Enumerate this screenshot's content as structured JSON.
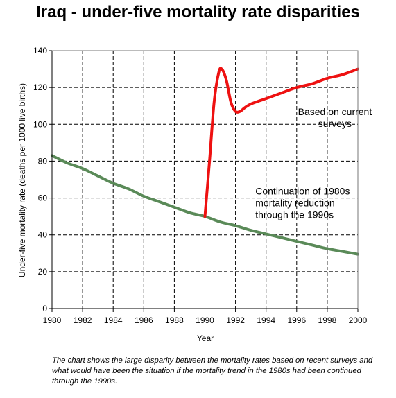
{
  "title": "Iraq - under-five mortality rate disparities",
  "caption": "The chart shows the large disparity between the mortality rates based on recent surveys and what would have been the situation if the mortality trend in the 1980s had been continued through the 1990s.",
  "chart_data": {
    "type": "line",
    "xlabel": "Year",
    "ylabel": "Under-five mortality rate (deaths per 1000 live births)",
    "xlim": [
      1980,
      2000
    ],
    "ylim": [
      0,
      140
    ],
    "xticks": [
      1980,
      1982,
      1984,
      1986,
      1988,
      1990,
      1992,
      1994,
      1996,
      1998,
      2000
    ],
    "yticks": [
      0,
      20,
      40,
      60,
      80,
      100,
      120,
      140
    ],
    "grid": true,
    "series": [
      {
        "color": "#5a8a58",
        "x": [
          1980,
          1981,
          1982,
          1983,
          1984,
          1985,
          1986,
          1987,
          1988,
          1989,
          1990,
          1991,
          1992,
          1993,
          1994,
          1995,
          1996,
          1997,
          1998,
          1999,
          2000
        ],
        "y": [
          83,
          79,
          76,
          72,
          68,
          65,
          61,
          58,
          55,
          52,
          50,
          47,
          45,
          42.5,
          40.5,
          38.5,
          36.5,
          34.5,
          32.5,
          31,
          29.5
        ]
      },
      {
        "color": "#ee1111",
        "x": [
          1990,
          1990.3,
          1990.6,
          1990.9,
          1991.1,
          1991.4,
          1991.7,
          1992,
          1992.3,
          1992.6,
          1993,
          1994,
          1995,
          1996,
          1997,
          1998,
          1999,
          2000
        ],
        "y": [
          50,
          80,
          112,
          128,
          130,
          124,
          112,
          107,
          107,
          109,
          111,
          114,
          117,
          120,
          122,
          125,
          127,
          130
        ]
      }
    ],
    "annotations": [
      {
        "lines": [
          "Based on current",
          "surveys"
        ],
        "x": 1998.5,
        "y": 105,
        "anchor": "middle"
      },
      {
        "lines": [
          "Continuation of 1980s",
          "mortality reduction",
          "through the 1990s"
        ],
        "x": 1993.3,
        "y": 62,
        "anchor": "start"
      }
    ]
  }
}
